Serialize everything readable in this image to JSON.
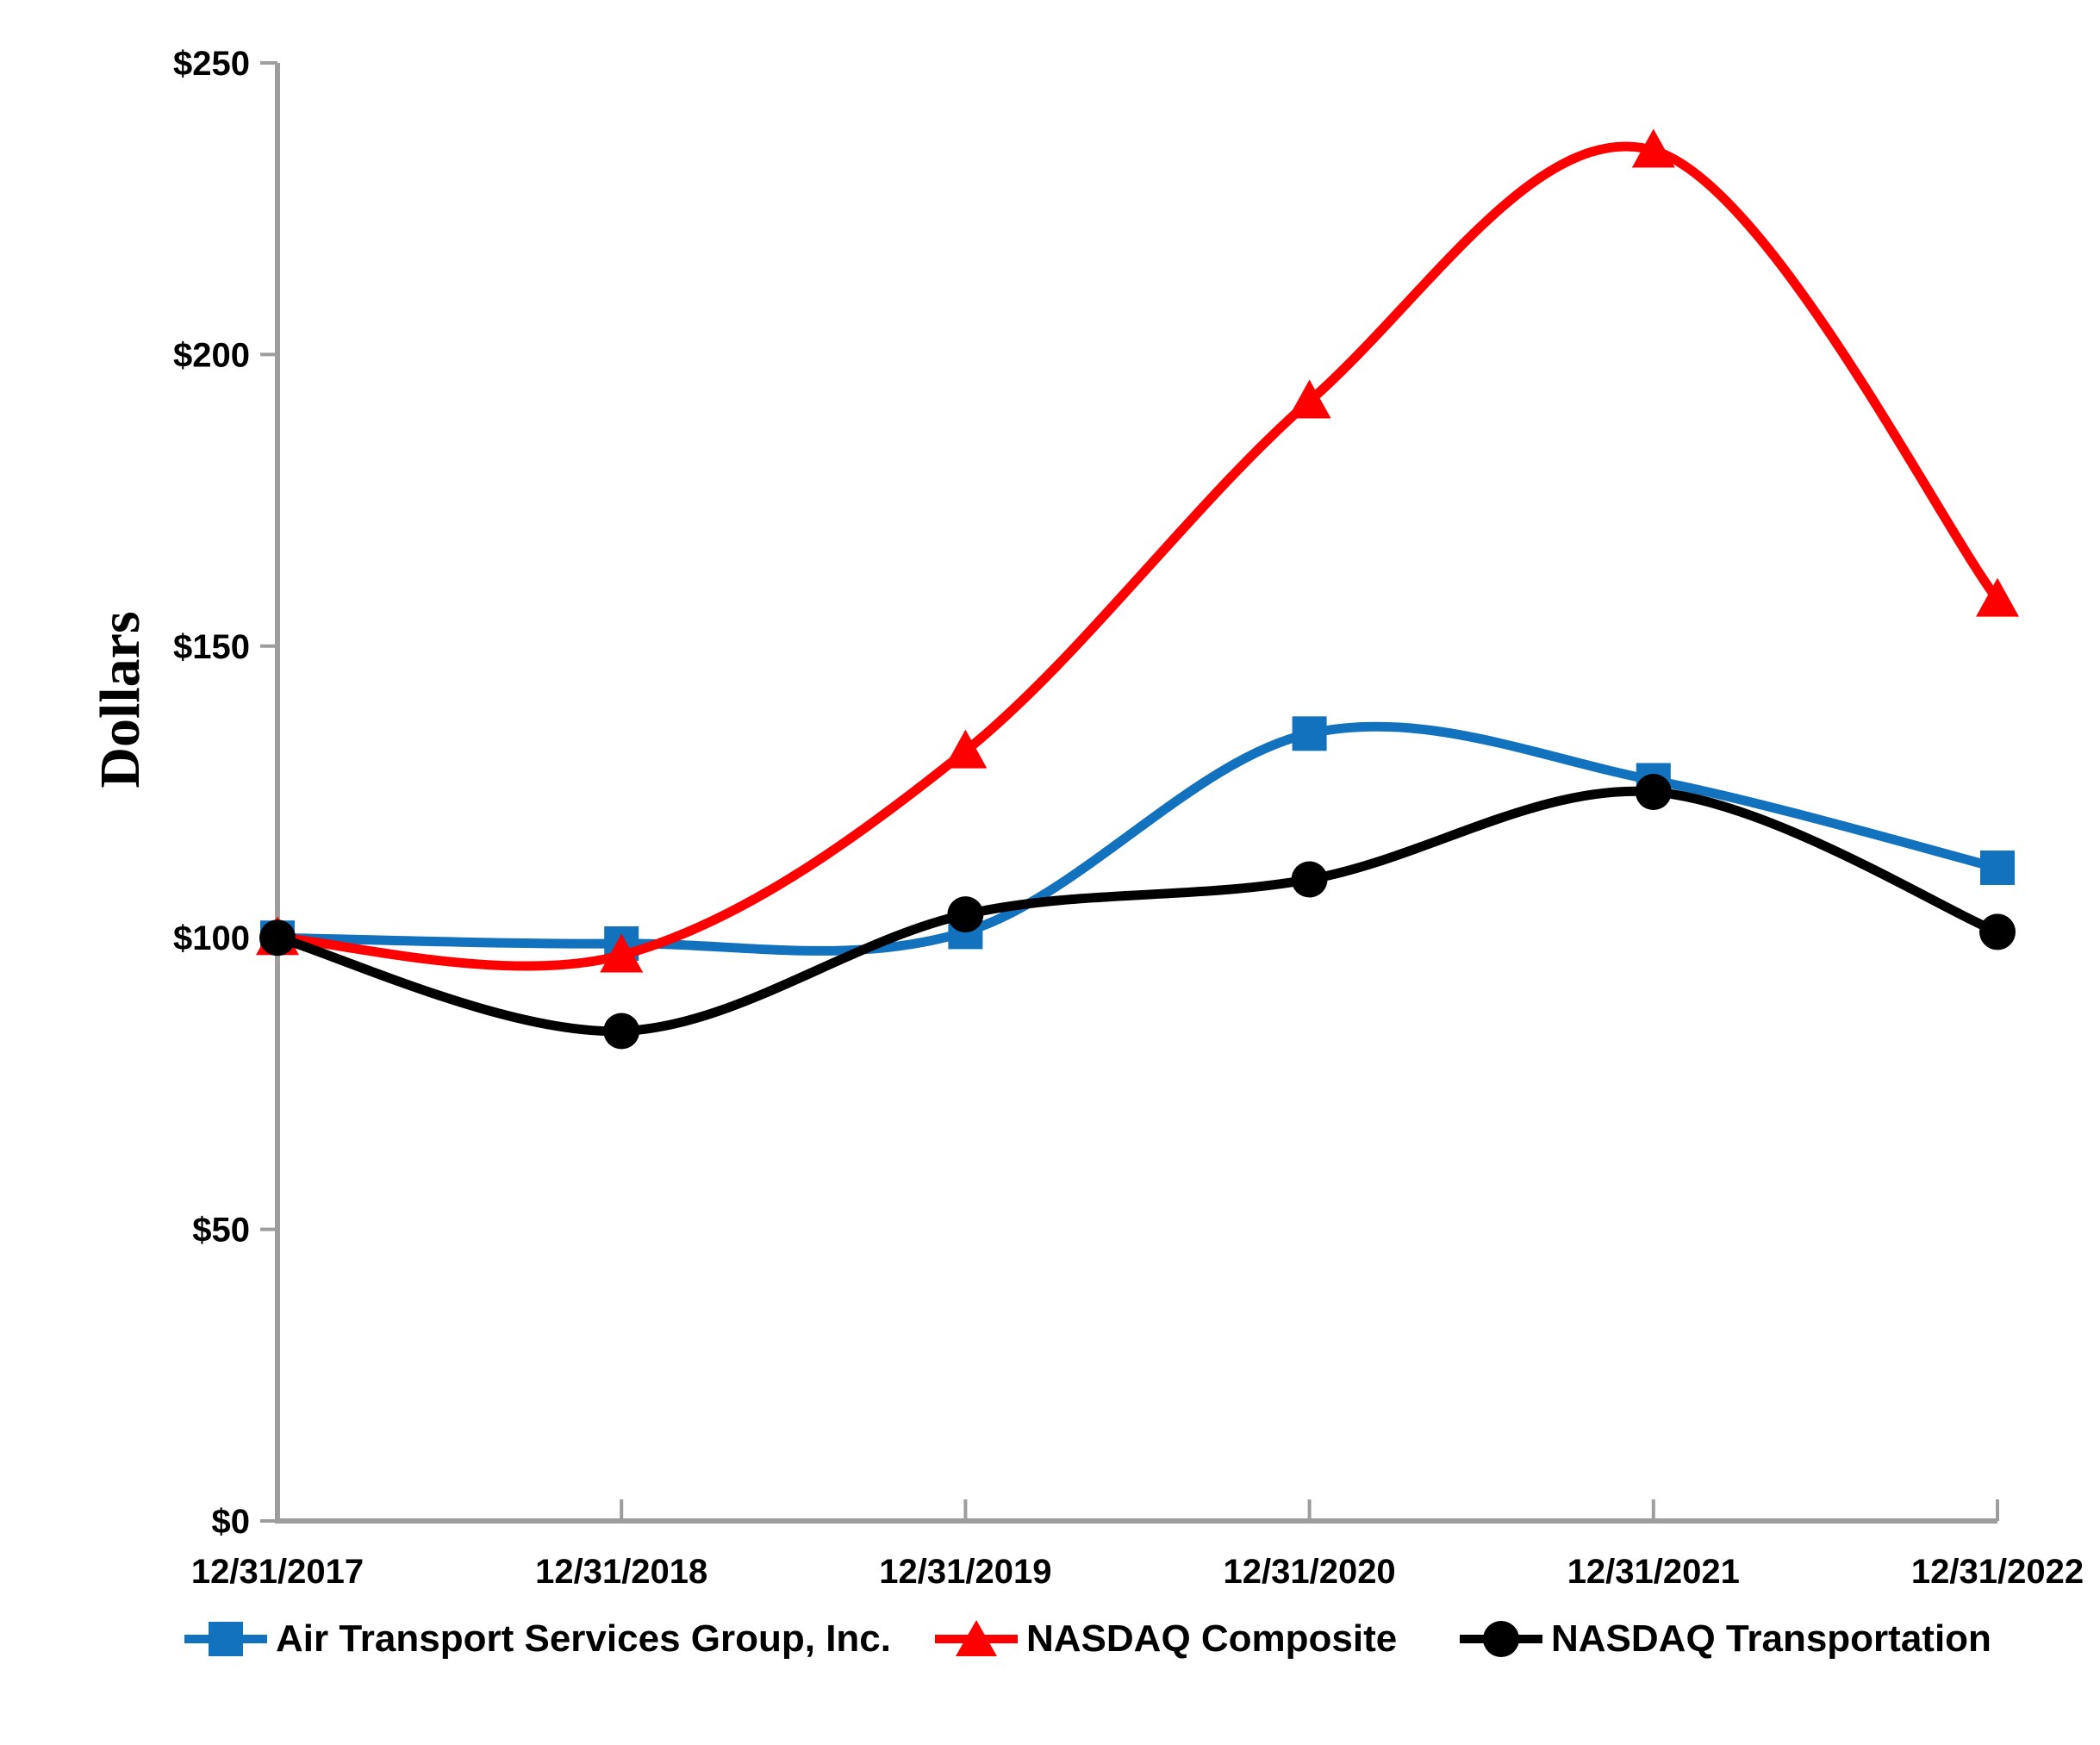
{
  "chart_data": {
    "type": "line",
    "title": "",
    "ylabel": "Dollars",
    "xlabel": "",
    "categories": [
      "12/31/2017",
      "12/31/2018",
      "12/31/2019",
      "12/31/2020",
      "12/31/2021",
      "12/31/2022"
    ],
    "series": [
      {
        "name": "Air Transport Services Group, Inc.",
        "marker": "square",
        "color": "#1272BD",
        "values": [
          100,
          99,
          101,
          135,
          127,
          112
        ]
      },
      {
        "name": "NASDAQ Composite",
        "marker": "triangle",
        "color": "#FF0000",
        "values": [
          100,
          97,
          132,
          192,
          235,
          158
        ]
      },
      {
        "name": "NASDAQ Transportation",
        "marker": "circle",
        "color": "#000000",
        "values": [
          100,
          84,
          104,
          110,
          125,
          101
        ]
      }
    ],
    "ylim": [
      0,
      250
    ],
    "ytick_labels": [
      "$0",
      "$50",
      "$100",
      "$150",
      "$200",
      "$250"
    ],
    "grid": false,
    "smooth_lines": true,
    "legend_position": "bottom",
    "axis_color": "#9D9D9D",
    "text_color": "#000000"
  }
}
